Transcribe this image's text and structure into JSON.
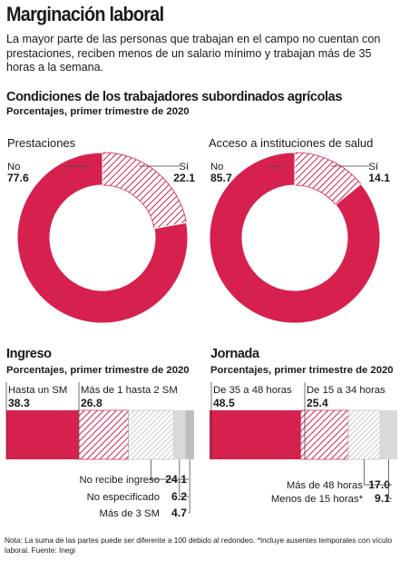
{
  "title": "Marginación laboral",
  "intro": "La mayor parte de las personas que trabajan en el campo no cuentan con prestaciones, reciben menos de un salario mínimo y trabajan más de 35 horas a la semana.",
  "section_top": {
    "heading": "Condiciones de los trabajadores subordinados agrícolas",
    "subheading": "Porcentajes, primer trimestre de 2020"
  },
  "section_ingreso": {
    "heading": "Ingreso",
    "subheading": "Porcentajes, primer trimestre de 2020"
  },
  "section_jornada": {
    "heading": "Jornada",
    "subheading": "Porcentajes, primer trimestre de 2020"
  },
  "note": "Nota: La suma de las partes puede ser diferente a 100 debido al redondeo. *Incluye ausentes temporales con vículo laboral. Fuente: Inegi",
  "colors": {
    "accent": "#d6214e",
    "hatch": "#d6214e",
    "gray": "#d9d9d9",
    "text": "#1a1a1a"
  },
  "chart_data": [
    {
      "type": "pie",
      "title": "Prestaciones",
      "categories": [
        "No",
        "Sí"
      ],
      "values": [
        77.6,
        22.1
      ],
      "labels": [
        "77.6",
        "22.1"
      ]
    },
    {
      "type": "pie",
      "title": "Acceso a instituciones de salud",
      "categories": [
        "No",
        "Sí"
      ],
      "values": [
        85.7,
        14.1
      ],
      "labels": [
        "85.7",
        "14.1"
      ]
    },
    {
      "type": "bar",
      "title": "Ingreso",
      "categories": [
        "Hasta un SM",
        "Más de 1 hasta 2 SM",
        "Más de 3 SM",
        "No especificado",
        "No recibe ingreso"
      ],
      "values": [
        38.3,
        26.8,
        4.7,
        6.2,
        24.1
      ],
      "labels": [
        "38.3",
        "26.8",
        "4.7",
        "6.2",
        "24.1"
      ]
    },
    {
      "type": "bar",
      "title": "Jornada",
      "categories": [
        "De 35 a 48 horas",
        "De 15 a 34 horas",
        "Más de 48 horas",
        "Menos de 15 horas*"
      ],
      "values": [
        48.5,
        25.4,
        17.0,
        9.1
      ],
      "labels": [
        "48.5",
        "25.4",
        "17.0",
        "9.1"
      ]
    }
  ]
}
